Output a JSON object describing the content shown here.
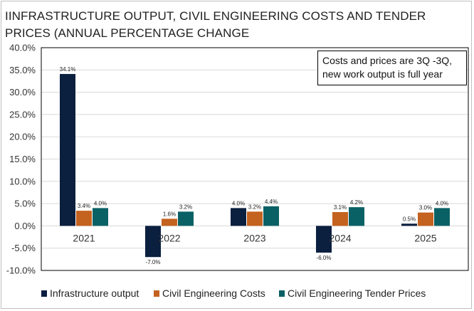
{
  "title": "IINFRASTRUCTURE OUTPUT, CIVIL ENGINEERING COSTS AND TENDER PRICES (ANNUAL PERCENTAGE CHANGE",
  "note": "Costs and prices are 3Q -3Q, new work output is full year",
  "colors": {
    "navy": "#0b1f3f",
    "orange": "#c4621f",
    "teal": "#0a6165"
  },
  "chart_data": {
    "type": "bar",
    "title": "IINFRASTRUCTURE OUTPUT, CIVIL ENGINEERING COSTS AND TENDER PRICES (ANNUAL PERCENTAGE CHANGE",
    "categories": [
      "2021",
      "2022",
      "2023",
      "2024",
      "2025"
    ],
    "series": [
      {
        "name": "Infrastructure output",
        "color": "#0b1f3f",
        "values": [
          34.1,
          -7.0,
          4.0,
          -6.0,
          0.5
        ],
        "labels": [
          "34.1%",
          "-7.0%",
          "4.0%",
          "-6.0%",
          "0.5%"
        ]
      },
      {
        "name": "Civil Engineering Costs",
        "color": "#c4621f",
        "values": [
          3.4,
          1.6,
          3.2,
          3.1,
          3.0
        ],
        "labels": [
          "3.4%",
          "1.6%",
          "3.2%",
          "3.1%",
          "3.0%"
        ]
      },
      {
        "name": "Civil Engineering Tender Prices",
        "color": "#0a6165",
        "values": [
          4.0,
          3.2,
          4.4,
          4.2,
          4.0
        ],
        "labels": [
          "4.0%",
          "3.2%",
          "4.4%",
          "4.2%",
          "4.0%"
        ]
      }
    ],
    "ylim": [
      -10,
      40
    ],
    "yticks": [
      40,
      35,
      30,
      25,
      20,
      15,
      10,
      5,
      0,
      -5,
      -10
    ],
    "ytick_labels": [
      "40.0%",
      "35.0%",
      "30.0%",
      "25.0%",
      "20.0%",
      "15.0%",
      "10.0%",
      "5.0%",
      "0.0%",
      "-5.0%",
      "-10.0%"
    ],
    "grid": true,
    "legend": "bottom"
  }
}
